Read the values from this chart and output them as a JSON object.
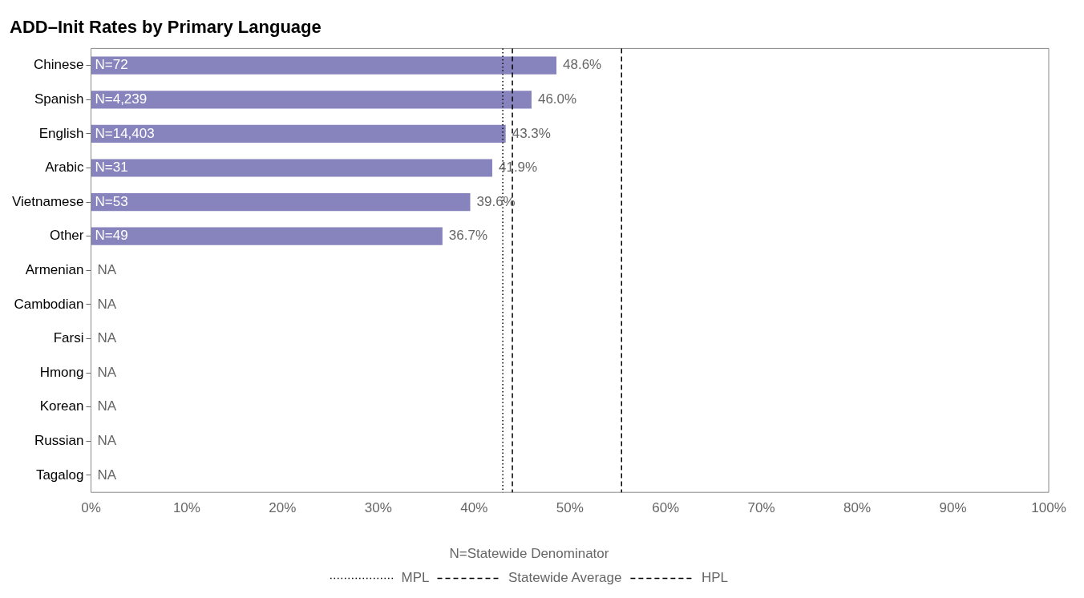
{
  "chart_data": {
    "type": "bar",
    "orientation": "horizontal",
    "title": "ADD–Init Rates by Primary Language",
    "categories": [
      "Chinese",
      "Spanish",
      "English",
      "Arabic",
      "Vietnamese",
      "Other",
      "Armenian",
      "Cambodian",
      "Farsi",
      "Hmong",
      "Korean",
      "Russian",
      "Tagalog"
    ],
    "values": [
      48.6,
      46.0,
      43.3,
      41.9,
      39.6,
      36.7,
      null,
      null,
      null,
      null,
      null,
      null,
      null
    ],
    "value_labels": [
      "48.6%",
      "46.0%",
      "43.3%",
      "41.9%",
      "39.6%",
      "36.7%",
      "NA",
      "NA",
      "NA",
      "NA",
      "NA",
      "NA",
      "NA"
    ],
    "color": "#8783bd",
    "xlim": [
      0,
      100
    ],
    "xticks": [
      {
        "value": 0,
        "label": "0%"
      },
      {
        "value": 10,
        "label": "10%"
      },
      {
        "value": 20,
        "label": "20%"
      },
      {
        "value": 30,
        "label": "30%"
      },
      {
        "value": 40,
        "label": "40%"
      },
      {
        "value": 50,
        "label": "50%"
      },
      {
        "value": 60,
        "label": "60%"
      },
      {
        "value": 70,
        "label": "70%"
      },
      {
        "value": 80,
        "label": "80%"
      },
      {
        "value": 90,
        "label": "90%"
      },
      {
        "value": 100,
        "label": "100%"
      }
    ],
    "ref_lines": [
      {
        "axis": "x",
        "value": 43.0,
        "label": "MPL",
        "line_style": "dotted",
        "color": "#000000"
      },
      {
        "axis": "x",
        "value": 44.0,
        "label": "Statewide Average",
        "line_style": "dashed",
        "color": "#000000"
      },
      {
        "axis": "x",
        "value": 55.4,
        "label": "HPL",
        "line_style": "dashed",
        "color": "#000000"
      }
    ],
    "annotations": [
      "N=72",
      "N=4,239",
      "N=14,403",
      "N=31",
      "N=53",
      "N=49"
    ],
    "legend_title": "N=Statewide Denominator",
    "grid": false,
    "legend": "bottom"
  }
}
